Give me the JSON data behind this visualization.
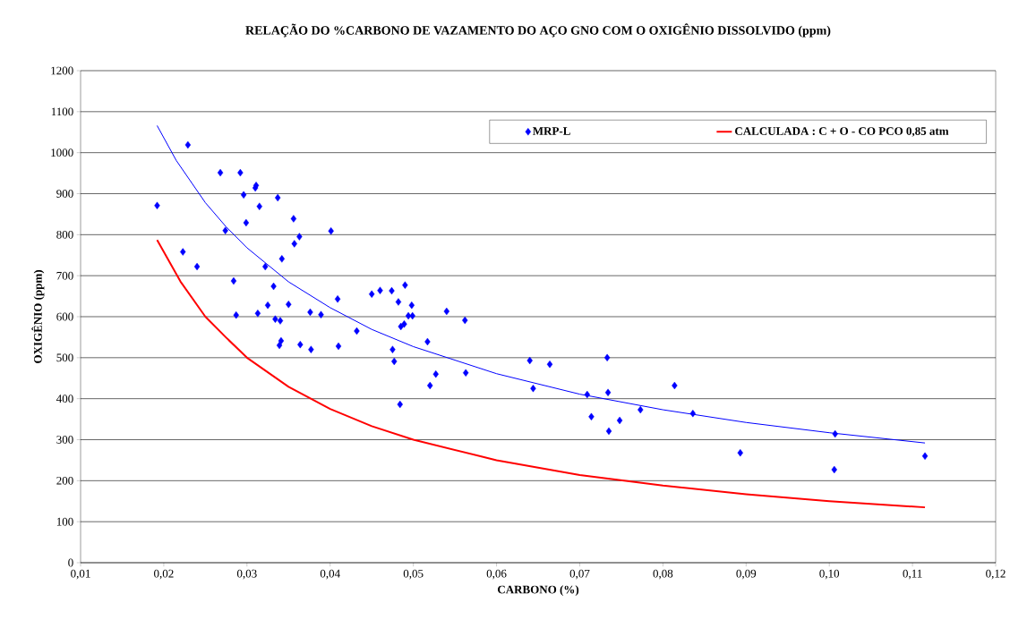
{
  "chart_data": {
    "type": "scatter",
    "title": "RELAÇÃO DO %CARBONO DE VAZAMENTO DO AÇO GNO COM O OXIGÊNIO DISSOLVIDO (ppm)",
    "xlabel": "CARBONO (%)",
    "ylabel": "OXIGÊNIO (ppm)",
    "xlim": [
      0.01,
      0.12
    ],
    "xticks": [
      {
        "value": 0.01,
        "label": "0,01"
      },
      {
        "value": 0.02,
        "label": "0,02"
      },
      {
        "value": 0.03,
        "label": "0,03"
      },
      {
        "value": 0.04,
        "label": "0,04"
      },
      {
        "value": 0.05,
        "label": "0,05"
      },
      {
        "value": 0.06,
        "label": "0,06"
      },
      {
        "value": 0.07,
        "label": "0,07"
      },
      {
        "value": 0.08,
        "label": "0,08"
      },
      {
        "value": 0.09,
        "label": "0,09"
      },
      {
        "value": 0.1,
        "label": "0,10"
      },
      {
        "value": 0.11,
        "label": "0,11"
      },
      {
        "value": 0.12,
        "label": "0,12"
      }
    ],
    "ylim": [
      0,
      1200
    ],
    "yticks": [
      0,
      100,
      200,
      300,
      400,
      500,
      600,
      700,
      800,
      900,
      1000,
      1100,
      1200
    ],
    "grid": "y",
    "legend": "top",
    "series": [
      {
        "name": "MRP-L",
        "marker": "diamond",
        "color": "#0000ff",
        "x": [
          0.0192,
          0.0229,
          0.0223,
          0.024,
          0.0268,
          0.0274,
          0.0284,
          0.0287,
          0.0292,
          0.0296,
          0.0299,
          0.031,
          0.0311,
          0.0315,
          0.0313,
          0.0322,
          0.0325,
          0.0332,
          0.0334,
          0.0337,
          0.034,
          0.0339,
          0.0341,
          0.0342,
          0.035,
          0.0356,
          0.0357,
          0.0363,
          0.0364,
          0.0376,
          0.0377,
          0.0389,
          0.0401,
          0.0409,
          0.041,
          0.0432,
          0.045,
          0.046,
          0.0474,
          0.0475,
          0.0477,
          0.0482,
          0.0484,
          0.0485,
          0.049,
          0.0489,
          0.0494,
          0.0499,
          0.0498,
          0.0517,
          0.052,
          0.0527,
          0.054,
          0.0562,
          0.0563,
          0.064,
          0.0644,
          0.0664,
          0.0709,
          0.0714,
          0.0733,
          0.0734,
          0.0735,
          0.0748,
          0.0773,
          0.0814,
          0.0836,
          0.0893,
          0.1007,
          0.1006,
          0.1115
        ],
        "values": [
          871,
          1019,
          758,
          722,
          951,
          810,
          687,
          604,
          951,
          897,
          829,
          914,
          920,
          869,
          608,
          722,
          628,
          674,
          594,
          890,
          590,
          530,
          541,
          741,
          630,
          839,
          778,
          795,
          532,
          611,
          520,
          605,
          809,
          643,
          528,
          565,
          655,
          664,
          663,
          520,
          491,
          636,
          386,
          576,
          677,
          582,
          602,
          602,
          628,
          539,
          432,
          460,
          613,
          591,
          463,
          493,
          425,
          484,
          410,
          356,
          500,
          415,
          321,
          347,
          373,
          432,
          364,
          268,
          314,
          227,
          260
        ]
      },
      {
        "type": "line",
        "marker": "none",
        "color": "#0000ff",
        "x": [
          0.0192,
          0.0215,
          0.025,
          0.0275,
          0.03,
          0.035,
          0.04,
          0.045,
          0.05,
          0.06,
          0.07,
          0.08,
          0.09,
          0.1,
          0.1115
        ],
        "values": [
          1066,
          981,
          878,
          819,
          768,
          685,
          622,
          569,
          527,
          461,
          411,
          373,
          342,
          317,
          292
        ]
      },
      {
        "name": "CALCULADA : C + O - CO PCO 0,85 atm",
        "type": "line",
        "marker": "none",
        "color": "#ff0000",
        "x": [
          0.0192,
          0.022,
          0.025,
          0.0275,
          0.03,
          0.035,
          0.04,
          0.045,
          0.05,
          0.06,
          0.07,
          0.08,
          0.09,
          0.1,
          0.1115
        ],
        "values": [
          787,
          686,
          600,
          549,
          500,
          429,
          375,
          333,
          300,
          250,
          214,
          188,
          167,
          150,
          135
        ]
      }
    ]
  }
}
